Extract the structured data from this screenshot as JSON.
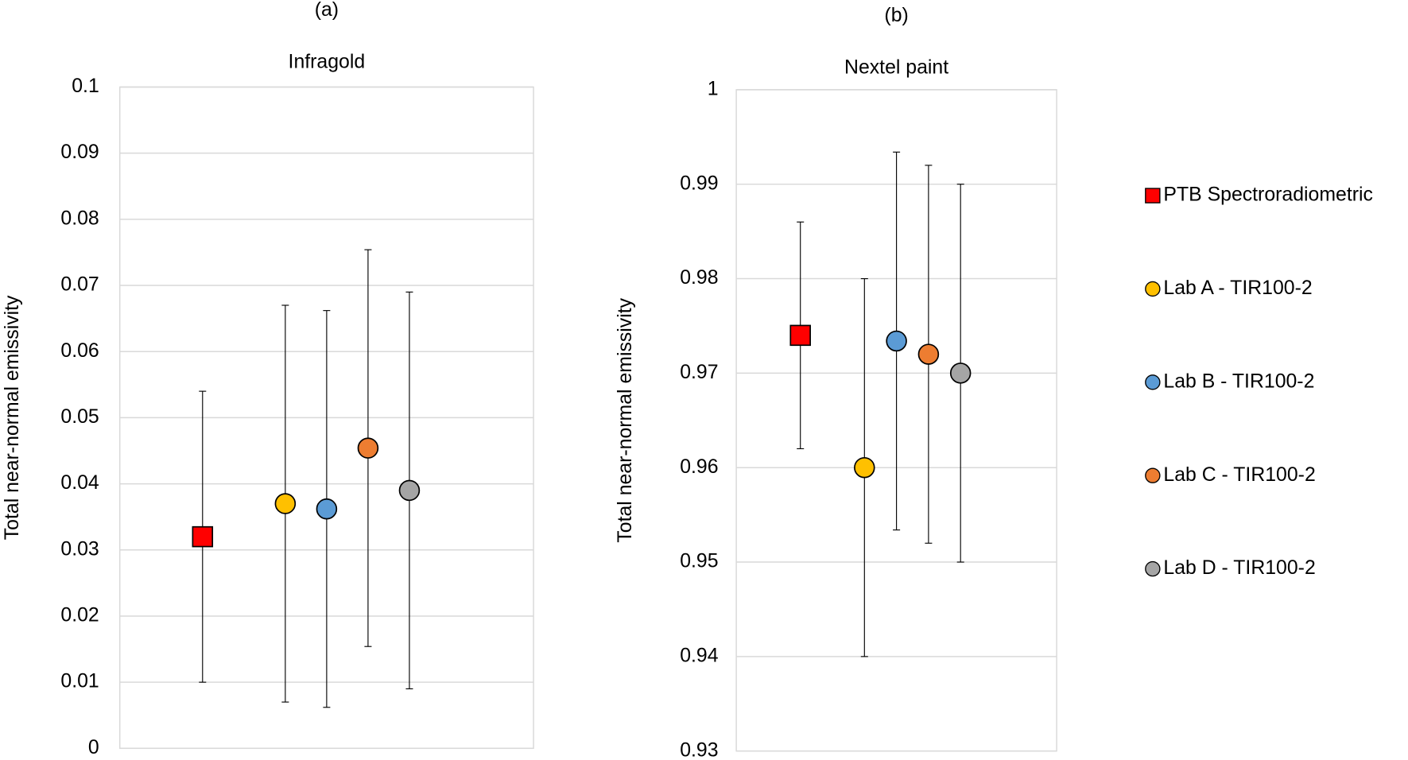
{
  "chart_data": [
    {
      "type": "errorbar",
      "label": "(a)",
      "title": "Infragold",
      "y_label": "Total near-normal emissivity",
      "ylim": [
        0,
        0.1
      ],
      "yticks": [
        0,
        0.01,
        0.02,
        0.03,
        0.04,
        0.05,
        0.06,
        0.07,
        0.08,
        0.09,
        0.1
      ],
      "grid": true,
      "legend": false,
      "series": [
        {
          "name": "PTB Spectroradiometric",
          "color": "#ff0000",
          "marker": "square",
          "values": [
            0.032
          ],
          "errors": [
            0.022
          ]
        },
        {
          "name": "Lab A - TIR100-2",
          "color": "#ffc000",
          "marker": "circle",
          "values": [
            0.037
          ],
          "errors": [
            0.03
          ]
        },
        {
          "name": "Lab B -  TIR100-2",
          "color": "#5b9bd5",
          "marker": "circle",
          "values": [
            0.0362
          ],
          "errors": [
            0.03
          ]
        },
        {
          "name": "Lab C - TIR100-2",
          "color": "#ed7d31",
          "marker": "circle",
          "values": [
            0.0454
          ],
          "errors": [
            0.03
          ]
        },
        {
          "name": "Lab D - TIR100-2",
          "color": "#a5a5a5",
          "marker": "circle",
          "values": [
            0.039
          ],
          "errors": [
            0.03
          ]
        }
      ]
    },
    {
      "type": "errorbar",
      "label": "(b)",
      "title": "Nextel paint",
      "y_label": "Total near-normal emissivity",
      "ylim": [
        0.93,
        1
      ],
      "yticks": [
        0.93,
        0.94,
        0.95,
        0.96,
        0.97,
        0.98,
        0.99,
        1
      ],
      "grid": true,
      "legend": "right",
      "series": [
        {
          "name": "PTB Spectroradiometric",
          "color": "#ff0000",
          "marker": "square",
          "values": [
            0.974
          ],
          "errors": [
            0.012
          ]
        },
        {
          "name": "Lab A - TIR100-2",
          "color": "#ffc000",
          "marker": "circle",
          "values": [
            0.96
          ],
          "errors": [
            0.02
          ]
        },
        {
          "name": "Lab B -  TIR100-2",
          "color": "#5b9bd5",
          "marker": "circle",
          "values": [
            0.9734
          ],
          "errors": [
            0.02
          ]
        },
        {
          "name": "Lab C - TIR100-2",
          "color": "#ed7d31",
          "marker": "circle",
          "values": [
            0.972
          ],
          "errors": [
            0.02
          ]
        },
        {
          "name": "Lab D - TIR100-2",
          "color": "#a5a5a5",
          "marker": "circle",
          "values": [
            0.97
          ],
          "errors": [
            0.02
          ]
        }
      ]
    }
  ]
}
